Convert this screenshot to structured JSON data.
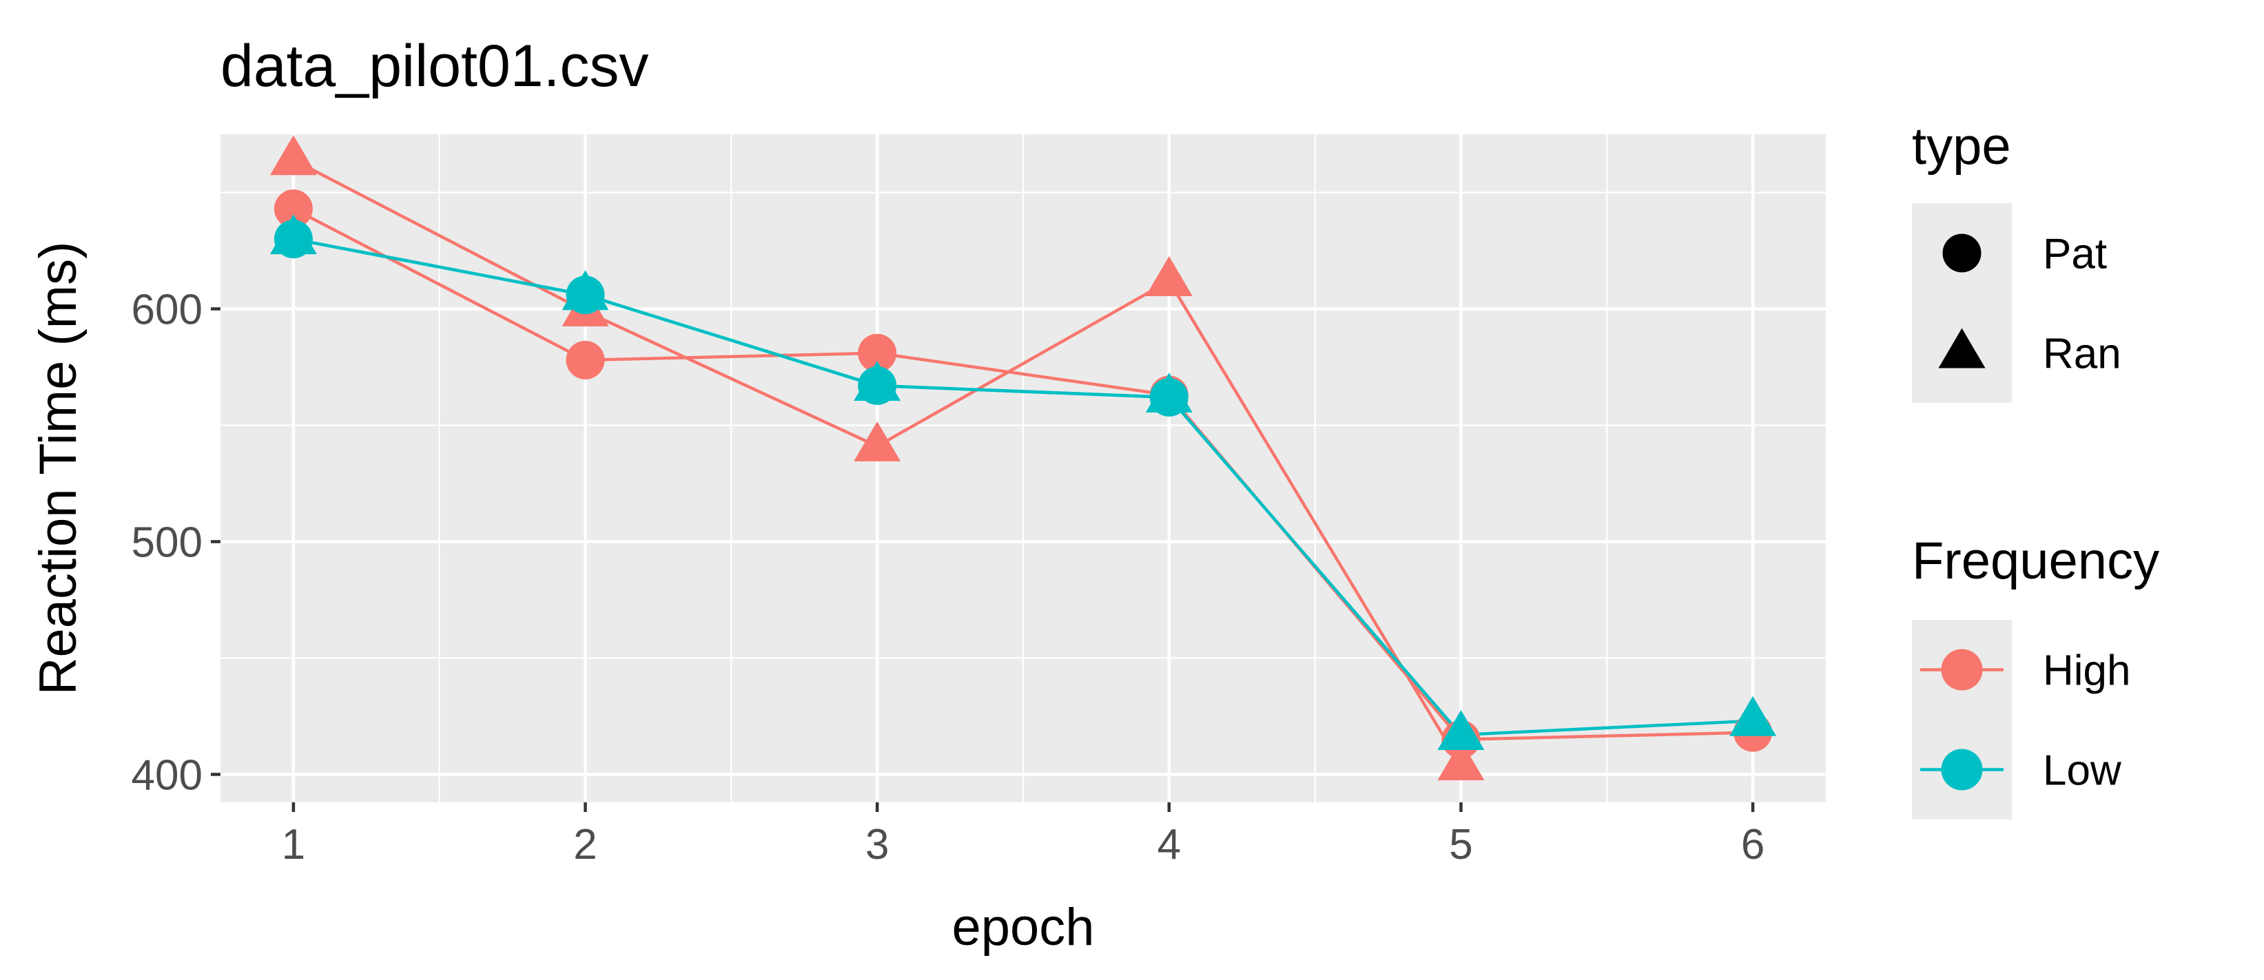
{
  "chart_data": {
    "type": "line",
    "title": "data_pilot01.csv",
    "xlabel": "epoch",
    "ylabel": "Reaction Time (ms)",
    "xlim": [
      0.75,
      6.25
    ],
    "ylim": [
      388,
      675
    ],
    "x_ticks": [
      1,
      2,
      3,
      4,
      5,
      6
    ],
    "x_tick_labels": [
      "1",
      "2",
      "3",
      "4",
      "5",
      "6"
    ],
    "y_ticks": [
      400,
      500,
      600
    ],
    "y_tick_labels": [
      "400",
      "500",
      "600"
    ],
    "grid": true,
    "colors": {
      "High": "#F8766D",
      "Low": "#00BFC4",
      "panel": "#EBEBEB",
      "grid": "#FFFFFF"
    },
    "series": [
      {
        "name": "High",
        "type": "Pat",
        "x": [
          1,
          2,
          3,
          4,
          5,
          6
        ],
        "y": [
          643,
          578,
          581,
          563,
          415,
          418
        ]
      },
      {
        "name": "High",
        "type": "Ran",
        "x": [
          1,
          2,
          3,
          4,
          5
        ],
        "y": [
          664,
          599,
          541,
          612,
          404
        ]
      },
      {
        "name": "Low",
        "type": "Pat",
        "x": [
          1,
          2,
          3,
          4
        ],
        "y": [
          630,
          606,
          567,
          562
        ]
      },
      {
        "name": "Low",
        "type": "Ran",
        "x": [
          1,
          2,
          3,
          4,
          5,
          6
        ],
        "y": [
          630,
          606,
          567,
          562,
          417,
          423
        ]
      }
    ],
    "legend": {
      "placement": "right",
      "groups": [
        {
          "title": "type",
          "entries": [
            {
              "label": "Pat",
              "shape": "circle"
            },
            {
              "label": "Ran",
              "shape": "triangle"
            }
          ]
        },
        {
          "title": "Frequency",
          "entries": [
            {
              "label": "High",
              "color": "#F8766D"
            },
            {
              "label": "Low",
              "color": "#00BFC4"
            }
          ]
        }
      ]
    }
  }
}
